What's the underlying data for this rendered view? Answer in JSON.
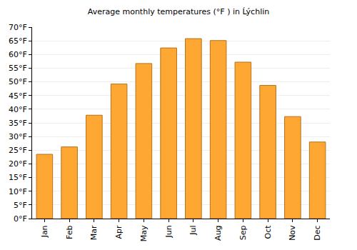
{
  "chart_data": {
    "type": "bar",
    "title": "Average monthly temperatures (°F ) in Ĺýchlin",
    "categories": [
      "Jan",
      "Feb",
      "Mar",
      "Apr",
      "May",
      "Jun",
      "Jul",
      "Aug",
      "Sep",
      "Oct",
      "Nov",
      "Dec"
    ],
    "values": [
      23.5,
      26.2,
      37.8,
      49.2,
      56.7,
      62.4,
      65.8,
      65.1,
      57.2,
      48.7,
      37.3,
      28.0
    ],
    "color": "#ffa733",
    "ylim": [
      0,
      70
    ],
    "yticks": [
      {
        "value": 0,
        "label": "0°F"
      },
      {
        "value": 5,
        "label": "5°F"
      },
      {
        "value": 10,
        "label": "10°F"
      },
      {
        "value": 15,
        "label": "15°F"
      },
      {
        "value": 20,
        "label": "20°F"
      },
      {
        "value": 25,
        "label": "25°F"
      },
      {
        "value": 30,
        "label": "30°F"
      },
      {
        "value": 35,
        "label": "35°F"
      },
      {
        "value": 40,
        "label": "40°F"
      },
      {
        "value": 45,
        "label": "45°F"
      },
      {
        "value": 50,
        "label": "50°F"
      },
      {
        "value": 55,
        "label": "55°F"
      },
      {
        "value": 60,
        "label": "60°F"
      },
      {
        "value": 65,
        "label": "65°F"
      },
      {
        "value": 70,
        "label": "70°F"
      }
    ],
    "grid": true
  }
}
